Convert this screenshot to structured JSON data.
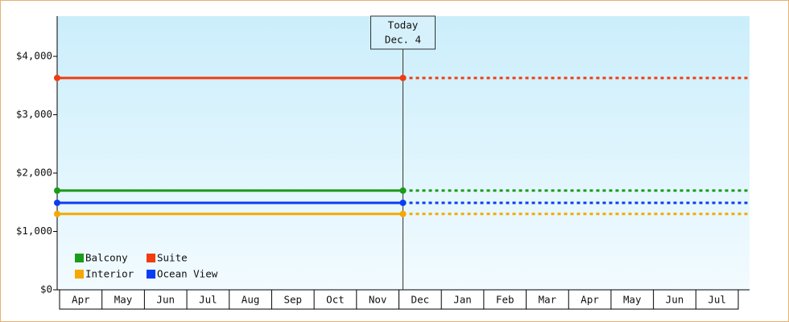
{
  "chart_data": {
    "type": "line",
    "categories": [
      "Apr",
      "May",
      "Jun",
      "Jul",
      "Aug",
      "Sep",
      "Oct",
      "Nov",
      "Dec",
      "Jan",
      "Feb",
      "Mar",
      "Apr",
      "May",
      "Jun",
      "Jul"
    ],
    "series": [
      {
        "name": "Balcony",
        "color": "#1a9c1a",
        "values": [
          1700,
          1700,
          1700,
          1700,
          1700,
          1700,
          1700,
          1700,
          null,
          null,
          null,
          null,
          null,
          null,
          null,
          null
        ]
      },
      {
        "name": "Suite",
        "color": "#f03c10",
        "values": [
          3630,
          3630,
          3630,
          3630,
          3630,
          3630,
          3630,
          3630,
          null,
          null,
          null,
          null,
          null,
          null,
          null,
          null
        ]
      },
      {
        "name": "Interior",
        "color": "#f5a800",
        "values": [
          1300,
          1300,
          1300,
          1300,
          1300,
          1300,
          1300,
          1300,
          null,
          null,
          null,
          null,
          null,
          null,
          null,
          null
        ]
      },
      {
        "name": "Ocean View",
        "color": "#0a3cf5",
        "values": [
          1490,
          1490,
          1490,
          1490,
          1490,
          1490,
          1490,
          1490,
          null,
          null,
          null,
          null,
          null,
          null,
          null,
          null
        ]
      }
    ],
    "ylim": [
      0,
      4690
    ],
    "yticks": [
      {
        "value": 0,
        "label": "$0"
      },
      {
        "value": 1000,
        "label": "$1,000"
      },
      {
        "value": 2000,
        "label": "$2,000"
      },
      {
        "value": 3000,
        "label": "$3,000"
      },
      {
        "value": 4000,
        "label": "$4,000"
      }
    ],
    "annotation": {
      "title": "Today",
      "date": "Dec. 4"
    },
    "legend": "lower left"
  }
}
